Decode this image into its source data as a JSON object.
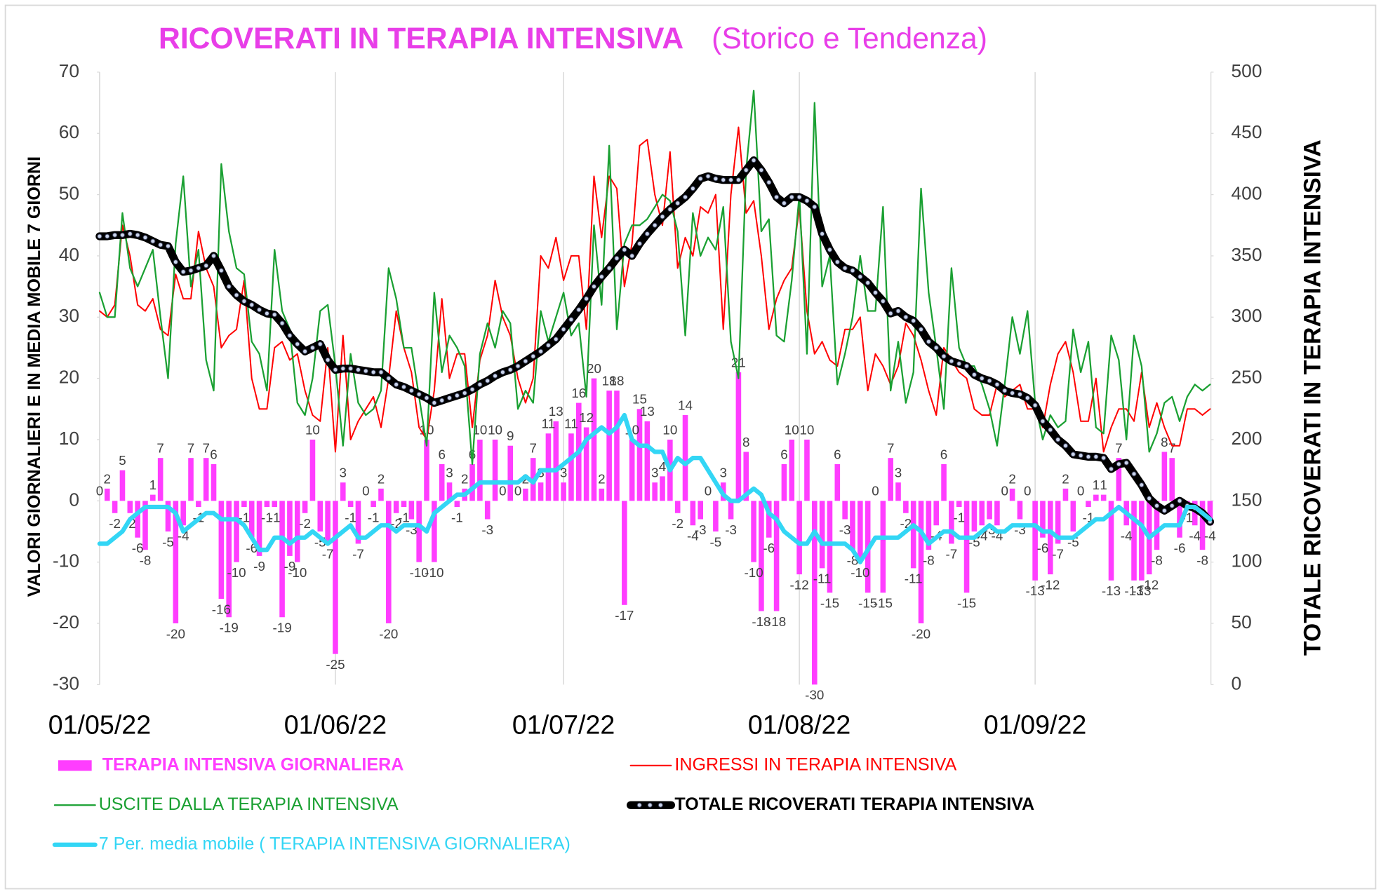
{
  "chart_data": {
    "type": "bar",
    "title": "RICOVERATI IN TERAPIA INTENSIVA",
    "subtitle": "(Storico e Tendenza)",
    "y_label": "VALORI GIORNALIERI E IN MEDIA MOBILE 7 GIORNI",
    "y2_label": "TOTALE RICOVERATI IN TERAPIA INTENSIVA",
    "categories": [
      "01/05/22",
      null,
      null,
      null,
      null,
      null,
      null,
      null,
      null,
      null,
      null,
      null,
      null,
      null,
      null,
      null,
      null,
      null,
      null,
      null,
      null,
      null,
      null,
      null,
      null,
      null,
      null,
      null,
      null,
      null,
      null,
      "01/06/22",
      null,
      null,
      null,
      null,
      null,
      null,
      null,
      null,
      null,
      null,
      null,
      null,
      null,
      null,
      null,
      null,
      null,
      null,
      null,
      null,
      null,
      null,
      null,
      null,
      null,
      null,
      null,
      null,
      null,
      "01/07/22",
      null,
      null,
      null,
      null,
      null,
      null,
      null,
      null,
      null,
      null,
      null,
      null,
      null,
      null,
      null,
      null,
      null,
      null,
      null,
      null,
      null,
      null,
      null,
      null,
      null,
      null,
      null,
      null,
      null,
      null,
      "01/08/22",
      null,
      null,
      null,
      null,
      null,
      null,
      null,
      null,
      null,
      null,
      null,
      null,
      null,
      null,
      null,
      null,
      null,
      null,
      null,
      null,
      null,
      null,
      null,
      null,
      null,
      null,
      null,
      null,
      null,
      null,
      "01/09/22",
      null,
      null,
      null,
      null,
      null,
      null,
      null,
      null,
      null,
      null,
      null,
      null,
      null,
      null,
      null,
      null,
      null,
      null,
      null,
      null,
      null,
      null,
      null
    ],
    "ylim": [
      -30,
      70
    ],
    "yticks": [
      -30,
      -20,
      -10,
      0,
      10,
      20,
      30,
      40,
      50,
      60,
      70
    ],
    "y2lim": [
      0,
      500
    ],
    "y2ticks": [
      0,
      50,
      100,
      150,
      200,
      250,
      300,
      350,
      400,
      450,
      500
    ],
    "grid": "x",
    "data_labels": true,
    "series": [
      {
        "name": "TERAPIA INTENSIVA GIORNALIERA",
        "type": "bar",
        "color": "#ff3dff",
        "values": [
          0,
          2,
          -2,
          5,
          -2,
          -6,
          -8,
          1,
          7,
          -5,
          -20,
          -4,
          7,
          -1,
          7,
          6,
          -16,
          -19,
          -10,
          -1,
          -6,
          -9,
          -1,
          -1,
          -19,
          -9,
          -10,
          -2,
          10,
          -5,
          -7,
          -25,
          3,
          -1,
          -7,
          0,
          -1,
          2,
          -20,
          -2,
          -1,
          -3,
          -10,
          10,
          -10,
          6,
          3,
          -1,
          2,
          6,
          10,
          -3,
          10,
          0,
          9,
          0,
          2,
          7,
          3,
          11,
          13,
          3,
          11,
          16,
          12,
          20,
          2,
          18,
          18,
          -17,
          10,
          15,
          13,
          3,
          4,
          10,
          -2,
          14,
          -4,
          -3,
          0,
          -5,
          3,
          -3,
          21,
          8,
          -10,
          -18,
          -6,
          -18,
          6,
          10,
          -12,
          10,
          -30,
          -11,
          -15,
          6,
          -3,
          -8,
          -10,
          -15,
          0,
          -15,
          7,
          3,
          -2,
          -11,
          -20,
          -8,
          -4,
          6,
          -7,
          -1,
          -15,
          -5,
          -4,
          -3,
          -4,
          0,
          2,
          -3,
          0,
          -13,
          -6,
          -12,
          -7,
          2,
          -5,
          0,
          -1,
          1,
          1,
          -13,
          7,
          -4,
          -13,
          -13,
          -12,
          -8,
          8,
          7,
          -6,
          -1,
          -4,
          -8,
          -4
        ]
      },
      {
        "name": "INGRESSI IN TERAPIA INTENSIVA",
        "type": "line",
        "color": "#ff0000",
        "values": [
          31,
          30,
          32,
          45,
          40,
          32,
          31,
          33,
          28,
          27,
          37,
          33,
          33,
          44,
          38,
          35,
          25,
          27,
          28,
          36,
          20,
          15,
          15,
          25,
          26,
          23,
          24,
          18,
          14,
          13,
          25,
          8,
          27,
          10,
          13,
          15,
          17,
          12,
          20,
          31,
          25,
          21,
          12,
          10,
          18,
          33,
          20,
          24,
          24,
          12,
          23,
          27,
          36,
          30,
          27,
          20,
          16,
          20,
          40,
          38,
          43,
          36,
          40,
          40,
          28,
          53,
          43,
          53,
          51,
          35,
          42,
          58,
          59,
          50,
          45,
          57,
          38,
          43,
          40,
          48,
          47,
          50,
          28,
          50,
          61,
          47,
          49,
          40,
          28,
          33,
          36,
          38,
          48,
          31,
          24,
          26,
          23,
          22,
          28,
          28,
          30,
          18,
          24,
          22,
          19,
          22,
          29,
          27,
          23,
          18,
          14,
          25,
          23,
          21,
          20,
          15,
          14,
          14,
          19,
          17,
          18,
          19,
          15,
          15,
          12,
          19,
          24,
          26,
          21,
          13,
          13,
          20,
          8,
          12,
          15,
          15,
          13,
          21,
          12,
          16,
          12,
          9,
          9,
          15,
          15,
          14,
          15
        ]
      },
      {
        "name": "USCITE DALLA TERAPIA INTENSIVA",
        "type": "line",
        "color": "#1aa032",
        "values": [
          34,
          30,
          30,
          47,
          38,
          35,
          38,
          41,
          30,
          20,
          42,
          53,
          35,
          41,
          23,
          18,
          55,
          44,
          38,
          37,
          26,
          24,
          18,
          41,
          31,
          28,
          16,
          14,
          20,
          31,
          32,
          22,
          9,
          24,
          16,
          14,
          15,
          18,
          38,
          33,
          25,
          25,
          17,
          9,
          34,
          21,
          27,
          25,
          22,
          6,
          24,
          29,
          25,
          31,
          29,
          15,
          18,
          16,
          31,
          26,
          30,
          34,
          27,
          29,
          17,
          45,
          32,
          58,
          28,
          42,
          45,
          45,
          46,
          48,
          50,
          49,
          44,
          27,
          47,
          40,
          43,
          41,
          48,
          26,
          20,
          54,
          67,
          44,
          46,
          27,
          26,
          36,
          50,
          24,
          65,
          35,
          40,
          19,
          24,
          30,
          40,
          31,
          31,
          48,
          18,
          26,
          16,
          21,
          51,
          34,
          25,
          15,
          38,
          25,
          22,
          22,
          19,
          15,
          9,
          19,
          30,
          24,
          31,
          16,
          10,
          14,
          12,
          13,
          28,
          21,
          26,
          12,
          11,
          27,
          23,
          10,
          27,
          22,
          8,
          11,
          16,
          17,
          13,
          17,
          19,
          18,
          19
        ]
      },
      {
        "name": "TOTALE RICOVERATI TERAPIA INTENSIVA",
        "type": "line",
        "axis": "y2",
        "color": "#000000",
        "markers": true,
        "values": [
          366,
          366,
          367,
          367,
          368,
          367,
          365,
          362,
          359,
          358,
          345,
          337,
          338,
          340,
          342,
          350,
          338,
          325,
          318,
          313,
          310,
          306,
          303,
          302,
          295,
          285,
          278,
          272,
          275,
          278,
          265,
          257,
          258,
          258,
          257,
          256,
          255,
          255,
          250,
          245,
          243,
          240,
          237,
          234,
          230,
          232,
          234,
          236,
          238,
          241,
          245,
          248,
          252,
          255,
          257,
          260,
          264,
          268,
          272,
          277,
          282,
          290,
          298,
          306,
          315,
          325,
          333,
          340,
          348,
          355,
          350,
          360,
          368,
          375,
          382,
          388,
          393,
          398,
          405,
          413,
          415,
          413,
          412,
          412,
          412,
          420,
          428,
          420,
          410,
          398,
          393,
          398,
          398,
          395,
          390,
          368,
          355,
          345,
          340,
          338,
          333,
          328,
          320,
          313,
          303,
          305,
          300,
          297,
          290,
          280,
          275,
          268,
          264,
          262,
          260,
          253,
          250,
          248,
          245,
          240,
          238,
          237,
          234,
          228,
          215,
          208,
          200,
          195,
          188,
          187,
          186,
          186,
          185,
          176,
          180,
          181,
          172,
          163,
          152,
          146,
          142,
          146,
          150,
          146,
          144,
          140,
          133
        ]
      },
      {
        "name": "7 Per. media mobile ( TERAPIA INTENSIVA GIORNALIERA)",
        "type": "line",
        "color": "#33d6f5",
        "values": [
          -7,
          -7,
          -6,
          -5,
          -3,
          -2,
          -1,
          -1,
          -1,
          -1,
          -2,
          -5,
          -4,
          -3,
          -2,
          -2,
          -3,
          -3,
          -3,
          -4,
          -6,
          -8,
          -8,
          -6,
          -6,
          -7,
          -6,
          -6,
          -5,
          -6,
          -7,
          -6,
          -5,
          -4,
          -6,
          -6,
          -5,
          -4,
          -4,
          -5,
          -4,
          -4,
          -4,
          -5,
          -2,
          -1,
          0,
          1,
          1,
          2,
          3,
          3,
          3,
          3,
          3,
          3,
          4,
          3,
          5,
          5,
          5,
          6,
          7,
          8,
          10,
          11,
          12,
          11,
          12,
          14,
          10,
          9,
          9,
          8,
          8,
          5,
          7,
          6,
          7,
          7,
          5,
          3,
          1,
          0,
          0,
          1,
          2,
          1,
          -2,
          -3,
          -5,
          -6,
          -7,
          -7,
          -5,
          -7,
          -7,
          -7,
          -7,
          -8,
          -10,
          -8,
          -6,
          -6,
          -6,
          -6,
          -5,
          -4,
          -5,
          -7,
          -6,
          -5,
          -5,
          -6,
          -6,
          -6,
          -5,
          -4,
          -5,
          -5,
          -4,
          -4,
          -4,
          -4,
          -5,
          -5,
          -6,
          -6,
          -6,
          -5,
          -4,
          -3,
          -3,
          -2,
          -1,
          -2,
          -3,
          -4,
          -6,
          -5,
          -4,
          -4,
          -4,
          -1,
          -1,
          -2,
          -3
        ]
      }
    ]
  }
}
